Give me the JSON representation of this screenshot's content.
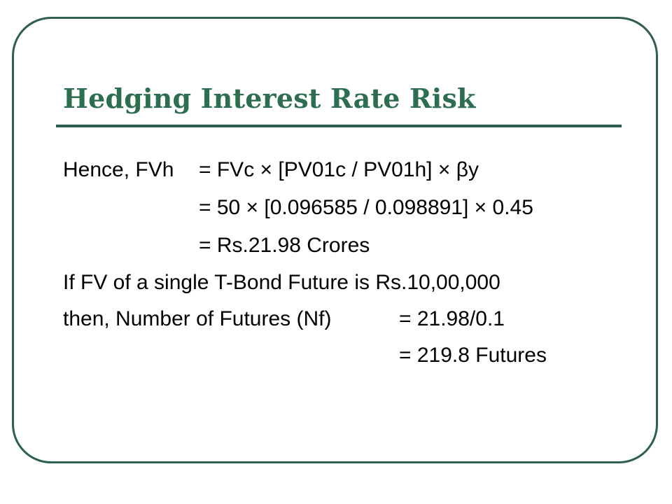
{
  "title": "Hedging Interest Rate Risk",
  "lines": {
    "l1_label": "Hence, FVh",
    "l1_expr": "= FVc × [PV01c / PV01h] × βy",
    "l2_expr": "= 50 × [0.096585 / 0.098891] × 0.45",
    "l3_expr": "= Rs.21.98 Crores",
    "l4_text": "If FV of a single T-Bond Future is Rs.10,00,000",
    "l5_label": "then, Number of Futures (Nf)",
    "l5_expr": "= 21.98/0.1",
    "l6_expr": "= 219.8 Futures"
  },
  "colors": {
    "title": "#2e6e50",
    "frame": "#2e5e4e"
  }
}
